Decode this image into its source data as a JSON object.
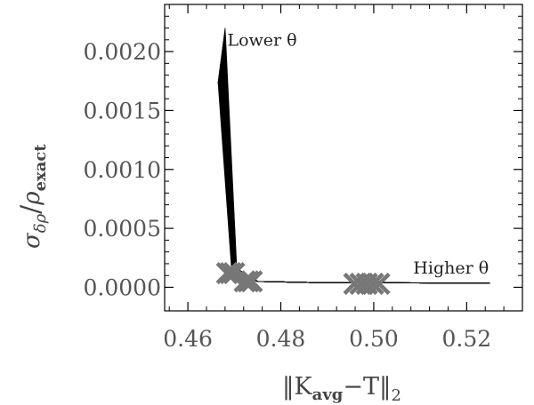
{
  "chart_data": {
    "type": "line",
    "xlim": [
      0.455,
      0.532
    ],
    "ylim": [
      -0.0002,
      0.0024
    ],
    "x_ticks": [
      "0.46",
      "0.48",
      "0.50",
      "0.52"
    ],
    "x_tick_values": [
      0.46,
      0.48,
      0.5,
      0.52
    ],
    "y_ticks": [
      "0.0000",
      "0.0005",
      "0.0010",
      "0.0015",
      "0.0020"
    ],
    "y_tick_values": [
      0.0,
      0.0005,
      0.001,
      0.0015,
      0.002
    ],
    "xlabel": {
      "main": "‖K",
      "sub1": "avg",
      "mid": "−T‖",
      "sub2": "2"
    },
    "ylabel": {
      "sigma": "σ",
      "sigma_sub": "δρ",
      "slash": "/",
      "rho": "ρ",
      "rho_sub": "exact"
    },
    "annotations": [
      {
        "text": "Lower θ",
        "x": 0.4685,
        "y": 0.00205
      },
      {
        "text": "Higher θ",
        "x": 0.5085,
        "y": 0.000115
      }
    ],
    "curve_family": {
      "count": 26,
      "start": {
        "x": [
          0.4665,
          0.468
        ],
        "y": [
          0.00175,
          0.0022
        ]
      },
      "knee": {
        "x": [
          0.4695,
          0.4705
        ],
        "y": [
          0.00011,
          0.00016
        ]
      },
      "tail_x": [
        0.475,
        0.487,
        0.525
      ],
      "tail_y": [
        5e-05,
        4e-05,
        3.5e-05
      ]
    },
    "markers": [
      {
        "x": 0.4692,
        "y": 0.00012
      },
      {
        "x": 0.473,
        "y": 5e-05
      },
      {
        "x": 0.4985,
        "y": 3e-05
      }
    ],
    "marker_color": "#777777",
    "curve_color": "#000000",
    "axis_color": "#000000",
    "grid": false
  }
}
